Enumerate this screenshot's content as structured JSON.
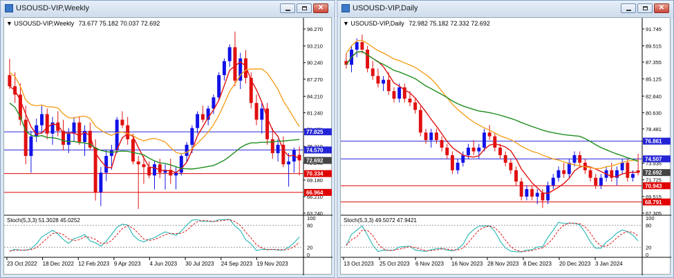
{
  "windows": [
    {
      "id": "weekly",
      "title": "USOUSD-VIP,Weekly",
      "info": {
        "symbol": "USOUSD-VIP,Weekly",
        "ohlc": "73.677 75.182 70.037 72.692"
      },
      "price_scale": [
        "96.270",
        "93.210",
        "90.240",
        "87.270",
        "84.210",
        "81.240",
        "78.270",
        "75.210",
        "72.240",
        "69.180",
        "66.210",
        "63.240"
      ],
      "x_labels": [
        "23 Oct 2022",
        "18 Dec 2022",
        "12 Feb 2023",
        "9 Apr 2023",
        "4 Jun 2023",
        "30 Jul 2023",
        "24 Sep 2023",
        "19 Nov 2023"
      ],
      "levels": [
        {
          "label": "77.825",
          "color": "#2424d6"
        },
        {
          "label": "74.570",
          "color": "#2424d6"
        },
        {
          "label": "72.692",
          "color": "#444444"
        },
        {
          "label": "70.334",
          "color": "#e00000"
        },
        {
          "label": "66.964",
          "color": "#e00000"
        }
      ],
      "stoch_label": "Stoch(5,3,3) 51.3028 45.0252",
      "stoch_scale": [
        "100",
        "80",
        "20",
        "0"
      ]
    },
    {
      "id": "daily",
      "title": "USOUSD-VIP,Daily",
      "info": {
        "symbol": "USOUSD-VIP,Daily",
        "ohlc": "72.982 75.182 72.332 72.692"
      },
      "price_scale": [
        "91.745",
        "89.515",
        "87.355",
        "85.125",
        "82.840",
        "80.630",
        "78.481",
        "76.861",
        "73.935",
        "71.725",
        "69.515",
        "67.305"
      ],
      "x_labels": [
        "13 Oct 2023",
        "25 Oct 2023",
        "6 Nov 2023",
        "16 Nov 2023",
        "28 Nov 2023",
        "8 Dec 2023",
        "20 Dec 2023",
        "3 Jan 2024"
      ],
      "levels": [
        {
          "label": "76.861",
          "color": "#2424d6"
        },
        {
          "label": "74.507",
          "color": "#2424d6"
        },
        {
          "label": "72.692",
          "color": "#444444"
        },
        {
          "label": "70.943",
          "color": "#e00000"
        },
        {
          "label": "68.791",
          "color": "#e00000"
        }
      ],
      "stoch_label": "Stoch(5,3,3) 49.5072 47.9421",
      "stoch_scale": [
        "100",
        "80",
        "20",
        "0"
      ]
    }
  ],
  "chart_data": [
    {
      "type": "candlestick",
      "title": "USOUSD-VIP,Weekly",
      "ylim": [
        63.24,
        96.27
      ],
      "x": [
        "23 Oct 2022",
        "18 Dec 2022",
        "12 Feb 2023",
        "9 Apr 2023",
        "4 Jun 2023",
        "30 Jul 2023",
        "24 Sep 2023",
        "19 Nov 2023"
      ],
      "candles": [
        [
          88.0,
          90.9,
          85.5,
          86.0
        ],
        [
          86.0,
          88.5,
          83.0,
          84.5
        ],
        [
          84.5,
          86.5,
          79.0,
          80.0
        ],
        [
          80.0,
          82.5,
          72.0,
          73.5
        ],
        [
          73.5,
          78.0,
          70.5,
          77.0
        ],
        [
          77.0,
          80.2,
          76.0,
          79.0
        ],
        [
          79.0,
          82.5,
          77.5,
          81.0
        ],
        [
          81.0,
          82.0,
          76.5,
          77.5
        ],
        [
          77.5,
          80.5,
          75.5,
          79.5
        ],
        [
          79.5,
          81.5,
          77.0,
          78.0
        ],
        [
          78.0,
          80.0,
          74.5,
          75.5
        ],
        [
          75.5,
          78.5,
          74.0,
          77.5
        ],
        [
          77.5,
          80.5,
          76.0,
          79.5
        ],
        [
          79.5,
          80.5,
          75.5,
          76.0
        ],
        [
          76.0,
          79.0,
          73.5,
          78.0
        ],
        [
          78.0,
          79.5,
          74.5,
          75.0
        ],
        [
          75.0,
          76.5,
          65.5,
          67.0
        ],
        [
          67.0,
          71.5,
          64.5,
          70.5
        ],
        [
          70.5,
          74.5,
          69.0,
          73.5
        ],
        [
          73.5,
          75.5,
          71.0,
          74.5
        ],
        [
          74.5,
          80.5,
          74.0,
          80.0
        ],
        [
          80.0,
          81.5,
          78.5,
          79.0
        ],
        [
          79.0,
          80.5,
          75.5,
          76.5
        ],
        [
          76.5,
          77.5,
          72.0,
          72.5
        ],
        [
          72.5,
          73.5,
          64.0,
          72.0
        ],
        [
          72.0,
          73.5,
          68.5,
          71.5
        ],
        [
          71.5,
          72.5,
          69.5,
          70.0
        ],
        [
          70.0,
          72.5,
          67.5,
          72.0
        ],
        [
          72.0,
          73.0,
          69.5,
          70.5
        ],
        [
          70.5,
          72.0,
          67.5,
          71.0
        ],
        [
          71.0,
          73.0,
          68.5,
          70.0
        ],
        [
          70.0,
          71.5,
          67.5,
          70.5
        ],
        [
          70.5,
          74.0,
          70.0,
          73.5
        ],
        [
          73.5,
          76.0,
          72.5,
          75.5
        ],
        [
          75.5,
          79.0,
          74.0,
          78.5
        ],
        [
          78.5,
          81.5,
          77.5,
          81.0
        ],
        [
          81.0,
          82.5,
          79.5,
          80.0
        ],
        [
          80.0,
          82.5,
          79.0,
          82.0
        ],
        [
          82.0,
          84.5,
          81.0,
          84.0
        ],
        [
          84.0,
          88.5,
          83.5,
          88.0
        ],
        [
          88.0,
          91.0,
          87.0,
          90.5
        ],
        [
          90.5,
          93.5,
          89.5,
          93.0
        ],
        [
          93.0,
          95.8,
          86.0,
          87.0
        ],
        [
          87.0,
          92.0,
          85.5,
          91.0
        ],
        [
          91.0,
          92.5,
          86.5,
          87.5
        ],
        [
          87.5,
          88.5,
          82.0,
          83.0
        ],
        [
          83.0,
          84.5,
          79.0,
          80.0
        ],
        [
          80.0,
          83.0,
          77.5,
          82.0
        ],
        [
          82.0,
          83.0,
          75.5,
          76.5
        ],
        [
          76.5,
          78.5,
          73.0,
          74.0
        ],
        [
          74.0,
          76.5,
          72.5,
          75.5
        ],
        [
          75.5,
          77.0,
          71.5,
          72.0
        ],
        [
          72.0,
          74.0,
          68.0,
          72.5
        ],
        [
          72.5,
          75.0,
          70.5,
          74.5
        ],
        [
          73.7,
          75.2,
          70.0,
          72.7
        ]
      ],
      "series": [
        {
          "name": "MA fast",
          "color": "#e01010"
        },
        {
          "name": "MA mid",
          "color": "#f5a020"
        },
        {
          "name": "MA slow",
          "color": "#1c8c1c"
        }
      ]
    },
    {
      "type": "candlestick",
      "title": "USOUSD-VIP,Daily",
      "ylim": [
        67.305,
        91.745
      ],
      "x": [
        "13 Oct 2023",
        "25 Oct 2023",
        "6 Nov 2023",
        "16 Nov 2023",
        "28 Nov 2023",
        "8 Dec 2023",
        "20 Dec 2023",
        "3 Jan 2024"
      ],
      "candles": [
        [
          87.5,
          88.5,
          86.5,
          87.0
        ],
        [
          87.0,
          89.5,
          86.0,
          89.0
        ],
        [
          89.0,
          90.5,
          88.0,
          90.0
        ],
        [
          90.0,
          91.0,
          88.5,
          89.0
        ],
        [
          89.0,
          89.5,
          86.0,
          86.5
        ],
        [
          86.5,
          87.5,
          85.0,
          85.5
        ],
        [
          85.5,
          86.5,
          84.0,
          84.5
        ],
        [
          84.5,
          85.5,
          83.5,
          85.0
        ],
        [
          85.0,
          86.0,
          83.0,
          83.5
        ],
        [
          83.5,
          84.0,
          82.0,
          82.5
        ],
        [
          82.5,
          84.5,
          82.0,
          84.0
        ],
        [
          84.0,
          84.5,
          82.0,
          82.5
        ],
        [
          82.5,
          83.5,
          81.5,
          82.0
        ],
        [
          82.0,
          82.5,
          80.5,
          81.0
        ],
        [
          81.0,
          81.5,
          77.5,
          78.0
        ],
        [
          78.0,
          78.5,
          76.5,
          77.0
        ],
        [
          77.0,
          78.5,
          76.0,
          78.0
        ],
        [
          78.0,
          78.5,
          76.5,
          77.0
        ],
        [
          77.0,
          77.5,
          75.5,
          76.0
        ],
        [
          76.0,
          76.5,
          74.5,
          75.0
        ],
        [
          75.0,
          75.5,
          72.5,
          73.0
        ],
        [
          73.0,
          74.5,
          72.5,
          74.0
        ],
        [
          74.0,
          75.5,
          73.5,
          75.0
        ],
        [
          75.0,
          76.5,
          74.5,
          76.0
        ],
        [
          76.0,
          77.0,
          75.0,
          75.5
        ],
        [
          75.5,
          76.5,
          74.5,
          76.0
        ],
        [
          76.0,
          78.5,
          75.5,
          78.0
        ],
        [
          78.0,
          79.0,
          77.0,
          77.5
        ],
        [
          77.5,
          78.0,
          75.5,
          76.0
        ],
        [
          76.0,
          76.5,
          74.5,
          75.0
        ],
        [
          75.0,
          75.5,
          73.5,
          74.0
        ],
        [
          74.0,
          74.5,
          72.5,
          73.0
        ],
        [
          73.0,
          73.5,
          71.0,
          71.5
        ],
        [
          71.5,
          72.0,
          69.0,
          69.5
        ],
        [
          69.5,
          71.0,
          69.0,
          70.5
        ],
        [
          70.5,
          71.0,
          69.0,
          69.5
        ],
        [
          69.5,
          70.5,
          68.5,
          70.0
        ],
        [
          70.0,
          70.5,
          68.0,
          69.0
        ],
        [
          69.0,
          71.5,
          68.5,
          71.0
        ],
        [
          71.0,
          72.5,
          70.5,
          72.0
        ],
        [
          72.0,
          73.5,
          71.5,
          73.0
        ],
        [
          73.0,
          74.0,
          72.0,
          72.5
        ],
        [
          72.5,
          74.5,
          72.0,
          74.0
        ],
        [
          74.0,
          75.5,
          73.5,
          75.0
        ],
        [
          75.0,
          75.5,
          73.5,
          74.0
        ],
        [
          74.0,
          74.5,
          72.5,
          73.0
        ],
        [
          73.0,
          73.5,
          71.5,
          72.0
        ],
        [
          72.0,
          72.5,
          70.5,
          71.0
        ],
        [
          71.0,
          72.5,
          70.5,
          72.0
        ],
        [
          72.0,
          73.5,
          71.5,
          73.0
        ],
        [
          73.0,
          74.0,
          71.5,
          72.0
        ],
        [
          72.0,
          73.5,
          71.0,
          73.0
        ],
        [
          73.0,
          74.5,
          72.5,
          74.0
        ],
        [
          74.0,
          74.5,
          71.5,
          72.0
        ],
        [
          72.0,
          73.0,
          71.5,
          72.5
        ],
        [
          72.98,
          75.18,
          72.33,
          72.69
        ]
      ],
      "series": [
        {
          "name": "MA fast",
          "color": "#e01010"
        },
        {
          "name": "MA mid",
          "color": "#f5a020"
        },
        {
          "name": "MA slow",
          "color": "#1c8c1c"
        }
      ]
    }
  ]
}
